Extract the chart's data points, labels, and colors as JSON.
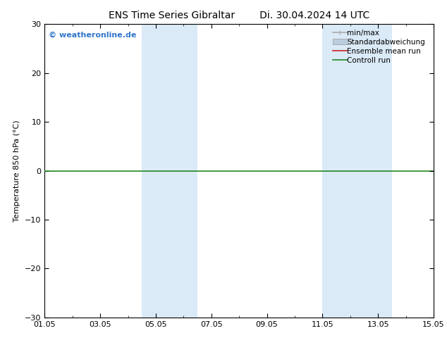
{
  "title_left": "ENS Time Series Gibraltar",
  "title_right": "Di. 30.04.2024 14 UTC",
  "ylabel": "Temperature 850 hPa (°C)",
  "ylim": [
    -30,
    30
  ],
  "yticks": [
    -30,
    -20,
    -10,
    0,
    10,
    20,
    30
  ],
  "xlim": [
    0,
    14
  ],
  "xtick_labels": [
    "01.05",
    "03.05",
    "05.05",
    "07.05",
    "09.05",
    "11.05",
    "13.05",
    "15.05"
  ],
  "xtick_positions": [
    0,
    2,
    4,
    6,
    8,
    10,
    12,
    14
  ],
  "shaded_regions": [
    {
      "xmin": 3.5,
      "xmax": 5.5,
      "color": "#daeaf7"
    },
    {
      "xmin": 10.0,
      "xmax": 12.5,
      "color": "#daeaf7"
    }
  ],
  "hline_y": 0,
  "hline_color": "#228822",
  "watermark": "© weatheronline.de",
  "watermark_color": "#3377cc",
  "legend_items": [
    {
      "label": "min/max",
      "color": "#aaaaaa",
      "lw": 1.2
    },
    {
      "label": "Standardabweichung",
      "color": "#bbccdd",
      "lw": 5
    },
    {
      "label": "Ensemble mean run",
      "color": "#cc2222",
      "lw": 1.2
    },
    {
      "label": "Controll run",
      "color": "#228822",
      "lw": 1.2
    }
  ],
  "bg_color": "#ffffff",
  "plot_bg_color": "#ffffff",
  "title_fontsize": 10,
  "label_fontsize": 8,
  "tick_fontsize": 8,
  "legend_fontsize": 7.5
}
